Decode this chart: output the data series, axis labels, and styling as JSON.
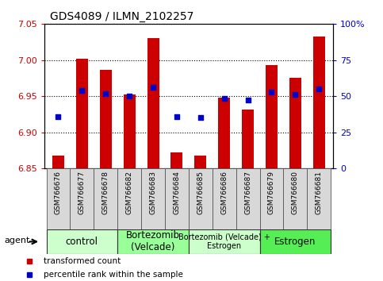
{
  "title": "GDS4089 / ILMN_2102257",
  "samples": [
    "GSM766676",
    "GSM766677",
    "GSM766678",
    "GSM766682",
    "GSM766683",
    "GSM766684",
    "GSM766685",
    "GSM766686",
    "GSM766687",
    "GSM766679",
    "GSM766680",
    "GSM766681"
  ],
  "bar_values": [
    6.868,
    7.002,
    6.986,
    6.952,
    7.03,
    6.872,
    6.868,
    6.948,
    6.932,
    6.993,
    6.975,
    7.032
  ],
  "dot_values": [
    6.922,
    6.958,
    6.954,
    6.95,
    6.962,
    6.922,
    6.921,
    6.947,
    6.945,
    6.956,
    6.952,
    6.96
  ],
  "bar_bottom": 6.85,
  "ylim": [
    6.85,
    7.05
  ],
  "yticks": [
    6.85,
    6.9,
    6.95,
    7.0,
    7.05
  ],
  "right_yticks": [
    0,
    25,
    50,
    75,
    100
  ],
  "right_ylim": [
    0,
    100
  ],
  "bar_color": "#cc0000",
  "dot_color": "#0000cc",
  "grid_color": "#000000",
  "groups": [
    {
      "label": "control",
      "start": 0,
      "end": 3,
      "color": "#ccffcc"
    },
    {
      "label": "Bortezomib\n(Velcade)",
      "start": 3,
      "end": 6,
      "color": "#99ff99"
    },
    {
      "label": "Bortezomib (Velcade) +\nEstrogen",
      "start": 6,
      "end": 9,
      "color": "#ccffcc"
    },
    {
      "label": "Estrogen",
      "start": 9,
      "end": 12,
      "color": "#55ee55"
    }
  ],
  "legend_items": [
    {
      "label": "transformed count",
      "color": "#cc0000"
    },
    {
      "label": "percentile rank within the sample",
      "color": "#0000cc"
    }
  ],
  "agent_label": "agent",
  "bg_color": "#ffffff",
  "plot_bg_color": "#ffffff",
  "tick_label_color_left": "#cc0000",
  "tick_label_color_right": "#0000cc",
  "figsize": [
    4.83,
    3.54
  ],
  "dpi": 100
}
